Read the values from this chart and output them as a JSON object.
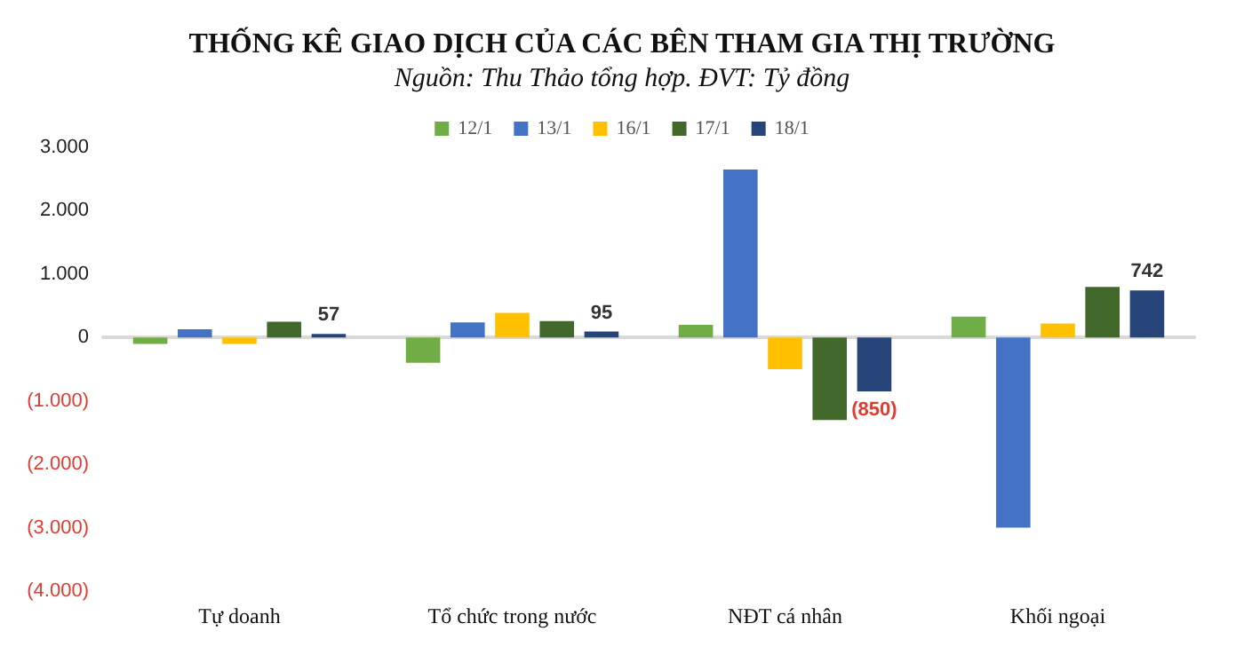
{
  "chart_data": {
    "type": "bar",
    "title": "THỐNG KÊ GIAO DỊCH CỦA CÁC BÊN THAM GIA THỊ TRƯỜNG",
    "subtitle": "Nguồn: Thu Thảo tổng hợp. ĐVT: Tỷ đồng",
    "categories": [
      "Tự doanh",
      "Tổ chức trong nước",
      "NĐT cá nhân",
      "Khối ngoại"
    ],
    "series": [
      {
        "name": "12/1",
        "color": "#70ad47",
        "values": [
          -100,
          -400,
          200,
          330
        ]
      },
      {
        "name": "13/1",
        "color": "#4472c4",
        "values": [
          130,
          240,
          2650,
          -3000
        ]
      },
      {
        "name": "16/1",
        "color": "#ffc000",
        "values": [
          -100,
          390,
          -500,
          220
        ]
      },
      {
        "name": "17/1",
        "color": "#43682b",
        "values": [
          250,
          260,
          -1300,
          800
        ]
      },
      {
        "name": "18/1",
        "color": "#264478",
        "values": [
          57,
          95,
          -850,
          742
        ],
        "value_labels": [
          "57",
          "95",
          "(850)",
          "742"
        ]
      }
    ],
    "ylim": [
      -4000,
      3000
    ],
    "yticks": [
      {
        "value": -4000,
        "label": "(4.000)"
      },
      {
        "value": -3000,
        "label": "(3.000)"
      },
      {
        "value": -2000,
        "label": "(2.000)"
      },
      {
        "value": -1000,
        "label": "(1.000)"
      },
      0,
      {
        "value": 1000,
        "label": "1.000"
      },
      {
        "value": 2000,
        "label": "2.000"
      },
      {
        "value": 3000,
        "label": "3.000"
      }
    ],
    "legend": "top"
  }
}
